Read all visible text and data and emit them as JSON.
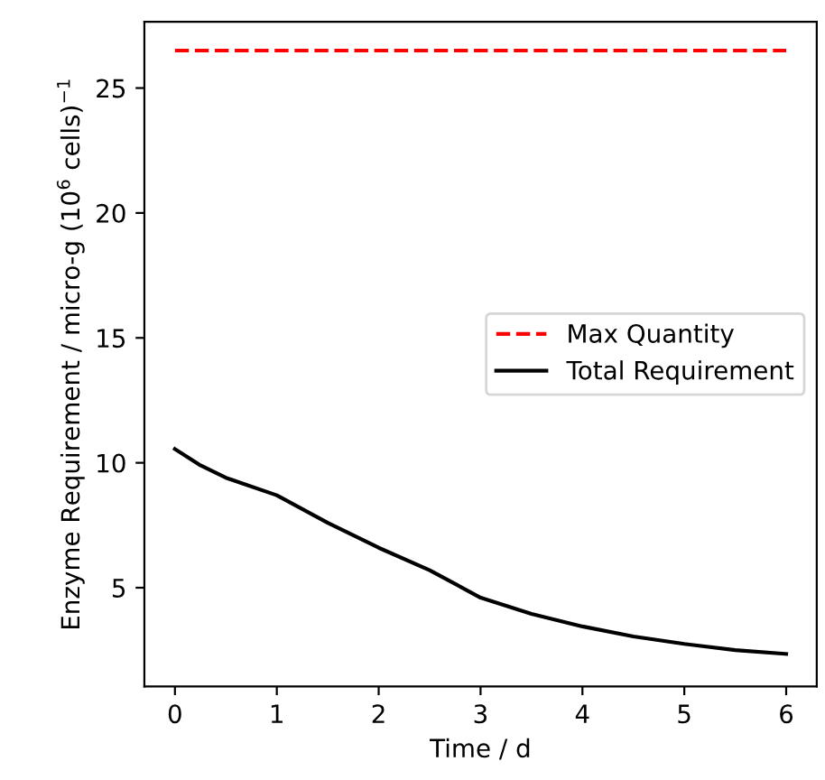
{
  "chart_data": {
    "type": "line",
    "xlabel": "Time / d",
    "ylabel": "Enzyme Requirement / micro-g (10$^{6}$ cells)$^{−1}$",
    "xlim": [
      -0.3,
      6.3
    ],
    "ylim": [
      1.05,
      27.65
    ],
    "xticks": [
      0,
      1,
      2,
      3,
      4,
      5,
      6
    ],
    "yticks": [
      5,
      10,
      15,
      20,
      25
    ],
    "legend": "right",
    "grid": false,
    "series": [
      {
        "name": "Max Quantity",
        "color": "#ff0000",
        "line_style": "dashed",
        "x": [
          0,
          6
        ],
        "values": [
          26.5,
          26.5
        ]
      },
      {
        "name": "Total Requirement",
        "color": "#000000",
        "line_style": "solid",
        "x": [
          0,
          0.25,
          0.5,
          1,
          1.5,
          2,
          2.5,
          3,
          3.5,
          4,
          4.5,
          5,
          5.5,
          6
        ],
        "values": [
          10.55,
          9.9,
          9.4,
          8.7,
          7.6,
          6.6,
          5.7,
          4.6,
          3.95,
          3.45,
          3.05,
          2.75,
          2.5,
          2.35
        ]
      }
    ]
  }
}
